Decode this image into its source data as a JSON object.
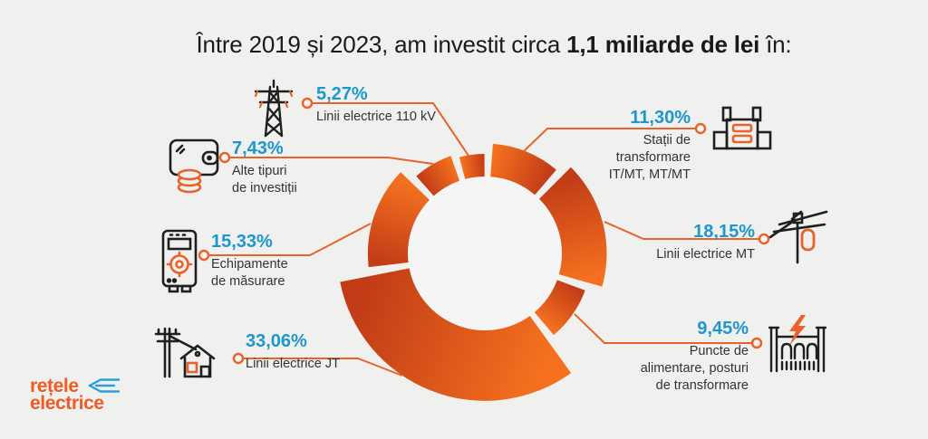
{
  "title": {
    "prefix": "Între 2019 și 2023, am investit circa ",
    "bold": "1,1 miliarde de lei",
    "suffix": " în:"
  },
  "colors": {
    "background": "#f0f0ef",
    "accent_orange": "#e8622b",
    "segment_dark": "#c23d17",
    "segment_bright": "#f4701f",
    "percent_blue": "#1d97ce",
    "text_dark": "#333333",
    "logo_orange": "#f05a24",
    "logo_blue": "#2b9fd9"
  },
  "items": [
    {
      "id": "statii",
      "pct": "11,30%",
      "value": 11.3,
      "label_lines": [
        "Stații de",
        "transformare",
        "IT/MT, MT/MT"
      ],
      "icon": "transformer-station-icon",
      "side": "right"
    },
    {
      "id": "linii-mt",
      "pct": "18,15%",
      "value": 18.15,
      "label_lines": [
        "Linii electrice MT"
      ],
      "icon": "mt-power-line-icon",
      "side": "right"
    },
    {
      "id": "puncte",
      "pct": "9,45%",
      "value": 9.45,
      "label_lines": [
        "Puncte de",
        "alimentare, posturi",
        "de transformare"
      ],
      "icon": "substation-fence-icon",
      "side": "right"
    },
    {
      "id": "linii-jt",
      "pct": "33,06%",
      "value": 33.06,
      "label_lines": [
        "Linii electrice JT"
      ],
      "icon": "pole-house-icon",
      "side": "left"
    },
    {
      "id": "echipamente",
      "pct": "15,33%",
      "value": 15.33,
      "label_lines": [
        "Echipamente",
        "de măsurare"
      ],
      "icon": "meter-icon",
      "side": "left"
    },
    {
      "id": "alte",
      "pct": "7,43%",
      "value": 7.43,
      "label_lines": [
        "Alte tipuri",
        "de investiții"
      ],
      "icon": "wallet-icon",
      "side": "left"
    },
    {
      "id": "linii-110kv",
      "pct": "5,27%",
      "value": 5.27,
      "label_lines": [
        "Linii electrice 110 kV"
      ],
      "icon": "transmission-tower-icon",
      "side": "left"
    }
  ],
  "logo": {
    "line1": "rețele",
    "line2": "electrice",
    "symbol": "flow-arrows-icon"
  },
  "chart_data": {
    "type": "pie",
    "subtype": "variable-radius-donut",
    "title": "Între 2019 și 2023, am investit circa 1,1 miliarde de lei în:",
    "total_invested": "1,1 miliarde de lei",
    "period": "2019–2023",
    "categories": [
      "Stații de transformare IT/MT, MT/MT",
      "Linii electrice MT",
      "Puncte de alimentare, posturi de transformare",
      "Linii electrice JT",
      "Echipamente de măsurare",
      "Alte tipuri de investiții",
      "Linii electrice 110 kV"
    ],
    "values": [
      11.3,
      18.15,
      9.45,
      33.06,
      15.33,
      7.43,
      5.27
    ],
    "value_labels": [
      "11,30%",
      "18,15%",
      "9,45%",
      "33,06%",
      "15,33%",
      "7,43%",
      "5,27%"
    ],
    "units": "%",
    "clockwise": true,
    "start_angle_deg_from_top": 2,
    "legend_position": "around",
    "hole": true
  }
}
